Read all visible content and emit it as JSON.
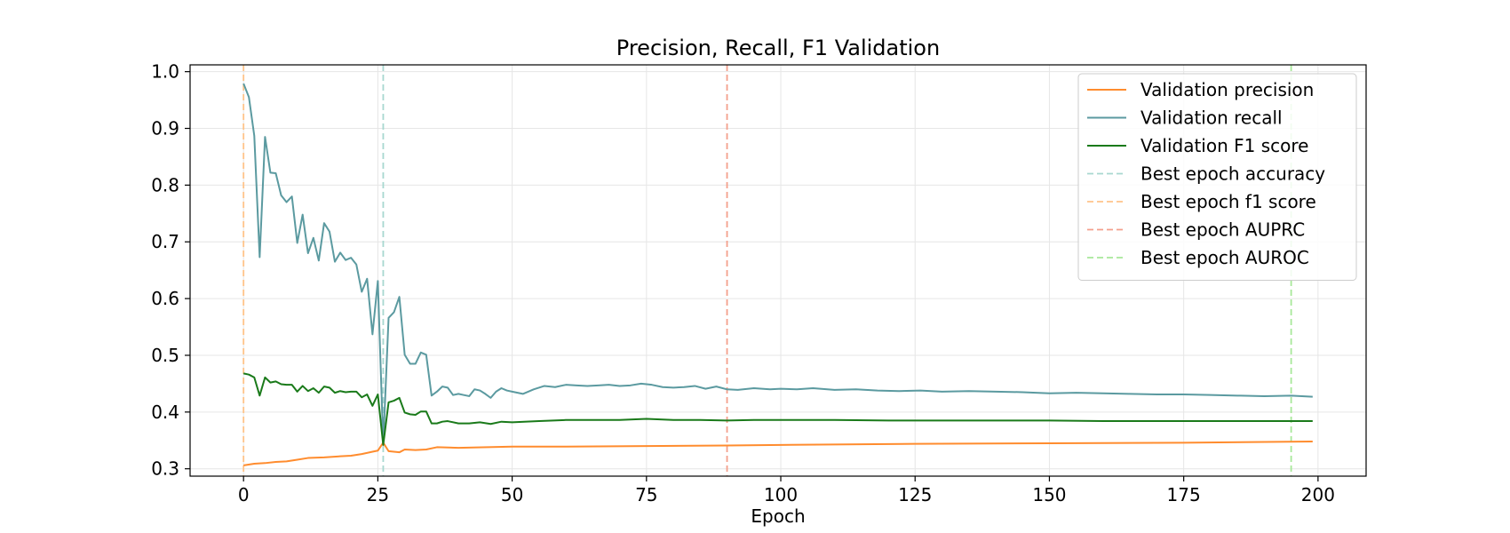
{
  "chart_data": {
    "type": "line",
    "title": "Precision, Recall, F1 Validation",
    "xlabel": "Epoch",
    "ylabel": "",
    "xlim": [
      -9.95,
      208.95
    ],
    "ylim": [
      0.287,
      1.012
    ],
    "xticks": [
      0,
      25,
      50,
      75,
      100,
      125,
      150,
      175,
      200
    ],
    "yticks": [
      0.3,
      0.4,
      0.5,
      0.6,
      0.7,
      0.8,
      0.9,
      1.0
    ],
    "grid": true,
    "legend_position": "upper right",
    "series": [
      {
        "name": "Validation precision",
        "color": "#ff8c2e",
        "x": [
          0,
          2,
          4,
          6,
          8,
          10,
          12,
          15,
          18,
          20,
          22,
          24,
          25,
          26,
          27,
          28,
          29,
          30,
          32,
          34,
          36,
          40,
          50,
          60,
          75,
          90,
          100,
          125,
          150,
          175,
          199
        ],
        "values": [
          0.306,
          0.309,
          0.31,
          0.312,
          0.313,
          0.316,
          0.319,
          0.32,
          0.322,
          0.323,
          0.326,
          0.33,
          0.332,
          0.346,
          0.331,
          0.33,
          0.329,
          0.334,
          0.333,
          0.334,
          0.338,
          0.337,
          0.339,
          0.339,
          0.34,
          0.341,
          0.342,
          0.344,
          0.345,
          0.346,
          0.348
        ]
      },
      {
        "name": "Validation recall",
        "color": "#5b9aa0",
        "x": [
          0,
          1,
          2,
          3,
          4,
          5,
          6,
          7,
          8,
          9,
          10,
          11,
          12,
          13,
          14,
          15,
          16,
          17,
          18,
          19,
          20,
          21,
          22,
          23,
          24,
          25,
          26,
          27,
          28,
          29,
          30,
          31,
          32,
          33,
          34,
          35,
          36,
          37,
          38,
          39,
          40,
          41,
          42,
          43,
          44,
          45,
          46,
          47,
          48,
          49,
          50,
          52,
          54,
          56,
          58,
          60,
          62,
          64,
          66,
          68,
          70,
          72,
          74,
          76,
          78,
          80,
          82,
          84,
          86,
          88,
          90,
          92,
          95,
          98,
          100,
          103,
          106,
          110,
          114,
          118,
          122,
          126,
          130,
          135,
          140,
          145,
          150,
          155,
          160,
          165,
          170,
          175,
          180,
          185,
          190,
          195,
          199
        ],
        "values": [
          0.979,
          0.955,
          0.887,
          0.673,
          0.885,
          0.822,
          0.821,
          0.782,
          0.77,
          0.78,
          0.698,
          0.748,
          0.68,
          0.707,
          0.667,
          0.733,
          0.718,
          0.665,
          0.681,
          0.668,
          0.672,
          0.66,
          0.612,
          0.635,
          0.537,
          0.631,
          0.343,
          0.566,
          0.576,
          0.603,
          0.501,
          0.485,
          0.485,
          0.505,
          0.501,
          0.429,
          0.436,
          0.445,
          0.443,
          0.43,
          0.432,
          0.43,
          0.428,
          0.44,
          0.438,
          0.432,
          0.425,
          0.436,
          0.442,
          0.438,
          0.436,
          0.432,
          0.44,
          0.446,
          0.444,
          0.448,
          0.447,
          0.446,
          0.447,
          0.448,
          0.446,
          0.447,
          0.45,
          0.448,
          0.444,
          0.443,
          0.444,
          0.446,
          0.441,
          0.445,
          0.44,
          0.439,
          0.442,
          0.44,
          0.441,
          0.44,
          0.442,
          0.439,
          0.44,
          0.438,
          0.437,
          0.438,
          0.436,
          0.437,
          0.436,
          0.435,
          0.433,
          0.434,
          0.433,
          0.432,
          0.431,
          0.431,
          0.43,
          0.429,
          0.428,
          0.429,
          0.427
        ]
      },
      {
        "name": "Validation F1 score",
        "color": "#1a7a1a",
        "x": [
          0,
          1,
          2,
          3,
          4,
          5,
          6,
          7,
          8,
          9,
          10,
          11,
          12,
          13,
          14,
          15,
          16,
          17,
          18,
          19,
          20,
          21,
          22,
          23,
          24,
          25,
          26,
          27,
          28,
          29,
          30,
          31,
          32,
          33,
          34,
          35,
          36,
          37,
          38,
          40,
          42,
          44,
          46,
          48,
          50,
          55,
          60,
          65,
          70,
          75,
          80,
          85,
          90,
          95,
          100,
          110,
          120,
          130,
          140,
          150,
          160,
          170,
          180,
          190,
          199
        ],
        "values": [
          0.468,
          0.466,
          0.461,
          0.429,
          0.461,
          0.452,
          0.454,
          0.449,
          0.448,
          0.448,
          0.436,
          0.446,
          0.437,
          0.442,
          0.434,
          0.445,
          0.443,
          0.434,
          0.437,
          0.435,
          0.436,
          0.436,
          0.426,
          0.431,
          0.411,
          0.431,
          0.342,
          0.417,
          0.42,
          0.425,
          0.399,
          0.396,
          0.395,
          0.401,
          0.401,
          0.38,
          0.38,
          0.383,
          0.384,
          0.38,
          0.38,
          0.382,
          0.379,
          0.383,
          0.382,
          0.384,
          0.386,
          0.386,
          0.386,
          0.388,
          0.386,
          0.386,
          0.385,
          0.386,
          0.386,
          0.386,
          0.385,
          0.385,
          0.385,
          0.385,
          0.384,
          0.384,
          0.384,
          0.384,
          0.384
        ]
      }
    ],
    "vlines": [
      {
        "name": "Best epoch accuracy",
        "x": 26,
        "color": "#a8d8d0"
      },
      {
        "name": "Best epoch f1 score",
        "x": 0,
        "color": "#ffc48a"
      },
      {
        "name": "Best epoch AUPRC",
        "x": 90,
        "color": "#f4a08c"
      },
      {
        "name": "Best epoch AUROC",
        "x": 195,
        "color": "#a8e89a"
      }
    ]
  }
}
